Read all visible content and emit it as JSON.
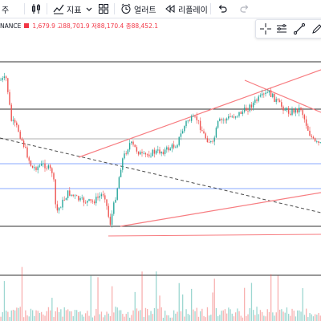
{
  "toolbar": {
    "partial_label": "주",
    "indicators_label": "지표",
    "alerts_label": "얼러트",
    "replay_label": "리플레이"
  },
  "legend": {
    "symbol_partial": "NANCE",
    "ohlc_text": "1,679.9  고88,701.9  저88,170.4  종88,452.1"
  },
  "icons": [
    "candles-icon",
    "indicators-icon",
    "chevron-down-icon",
    "layouts-icon",
    "alert-icon",
    "replay-icon",
    "undo-icon",
    "redo-icon",
    "crosshair-icon",
    "horizontal-lines-icon",
    "trendline-icon",
    "pencil-icon"
  ],
  "colors": {
    "up": "#26a69a",
    "down": "#ef5350",
    "trendline": "#f77c80",
    "hline": "#000000",
    "blue_hline": "#2962ff",
    "dashed": "#000000"
  }
}
